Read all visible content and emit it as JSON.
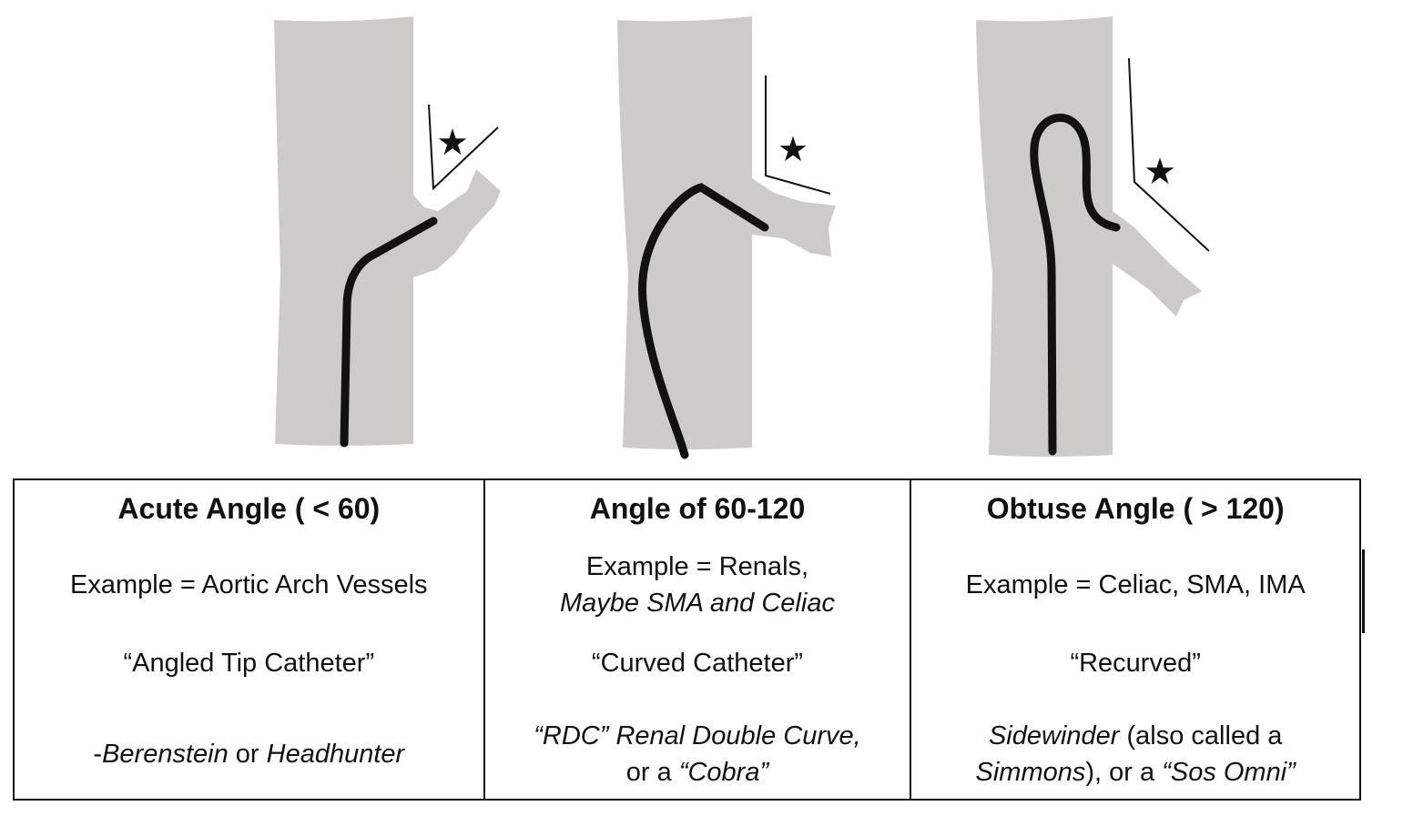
{
  "columns": [
    {
      "heading": "Acute Angle ( < 60)",
      "example": "Example = Aortic Arch Vessels",
      "catheter_type": "“Angled Tip Catheter”",
      "options": {
        "prefix": "-",
        "a": "Berenstein",
        "or": " or ",
        "b": "Headhunter"
      }
    },
    {
      "heading": "Angle of 60-120",
      "example_line1": "Example = Renals,",
      "example_line2": "Maybe SMA and Celiac",
      "catheter_type": "“Curved Catheter”",
      "options_line1": "“RDC” Renal Double Curve,",
      "options_line2_prefix": "or a ",
      "options_line2_name": "“Cobra”"
    },
    {
      "heading": "Obtuse Angle ( > 120)",
      "example": "Example = Celiac, SMA, IMA",
      "catheter_type": "“Recurved”",
      "options_line1_name": "Sidewinder",
      "options_line1_rest": " (also called a",
      "options_line2_name": "Simmons",
      "options_line2_mid": "), or a ",
      "options_line2_name2": "“Sos Omni”"
    }
  ],
  "colors": {
    "vessel": "#cdcaca",
    "catheter": "#111111",
    "line": "#111111"
  },
  "icons": [
    "star-icon",
    "star-icon",
    "star-icon"
  ]
}
